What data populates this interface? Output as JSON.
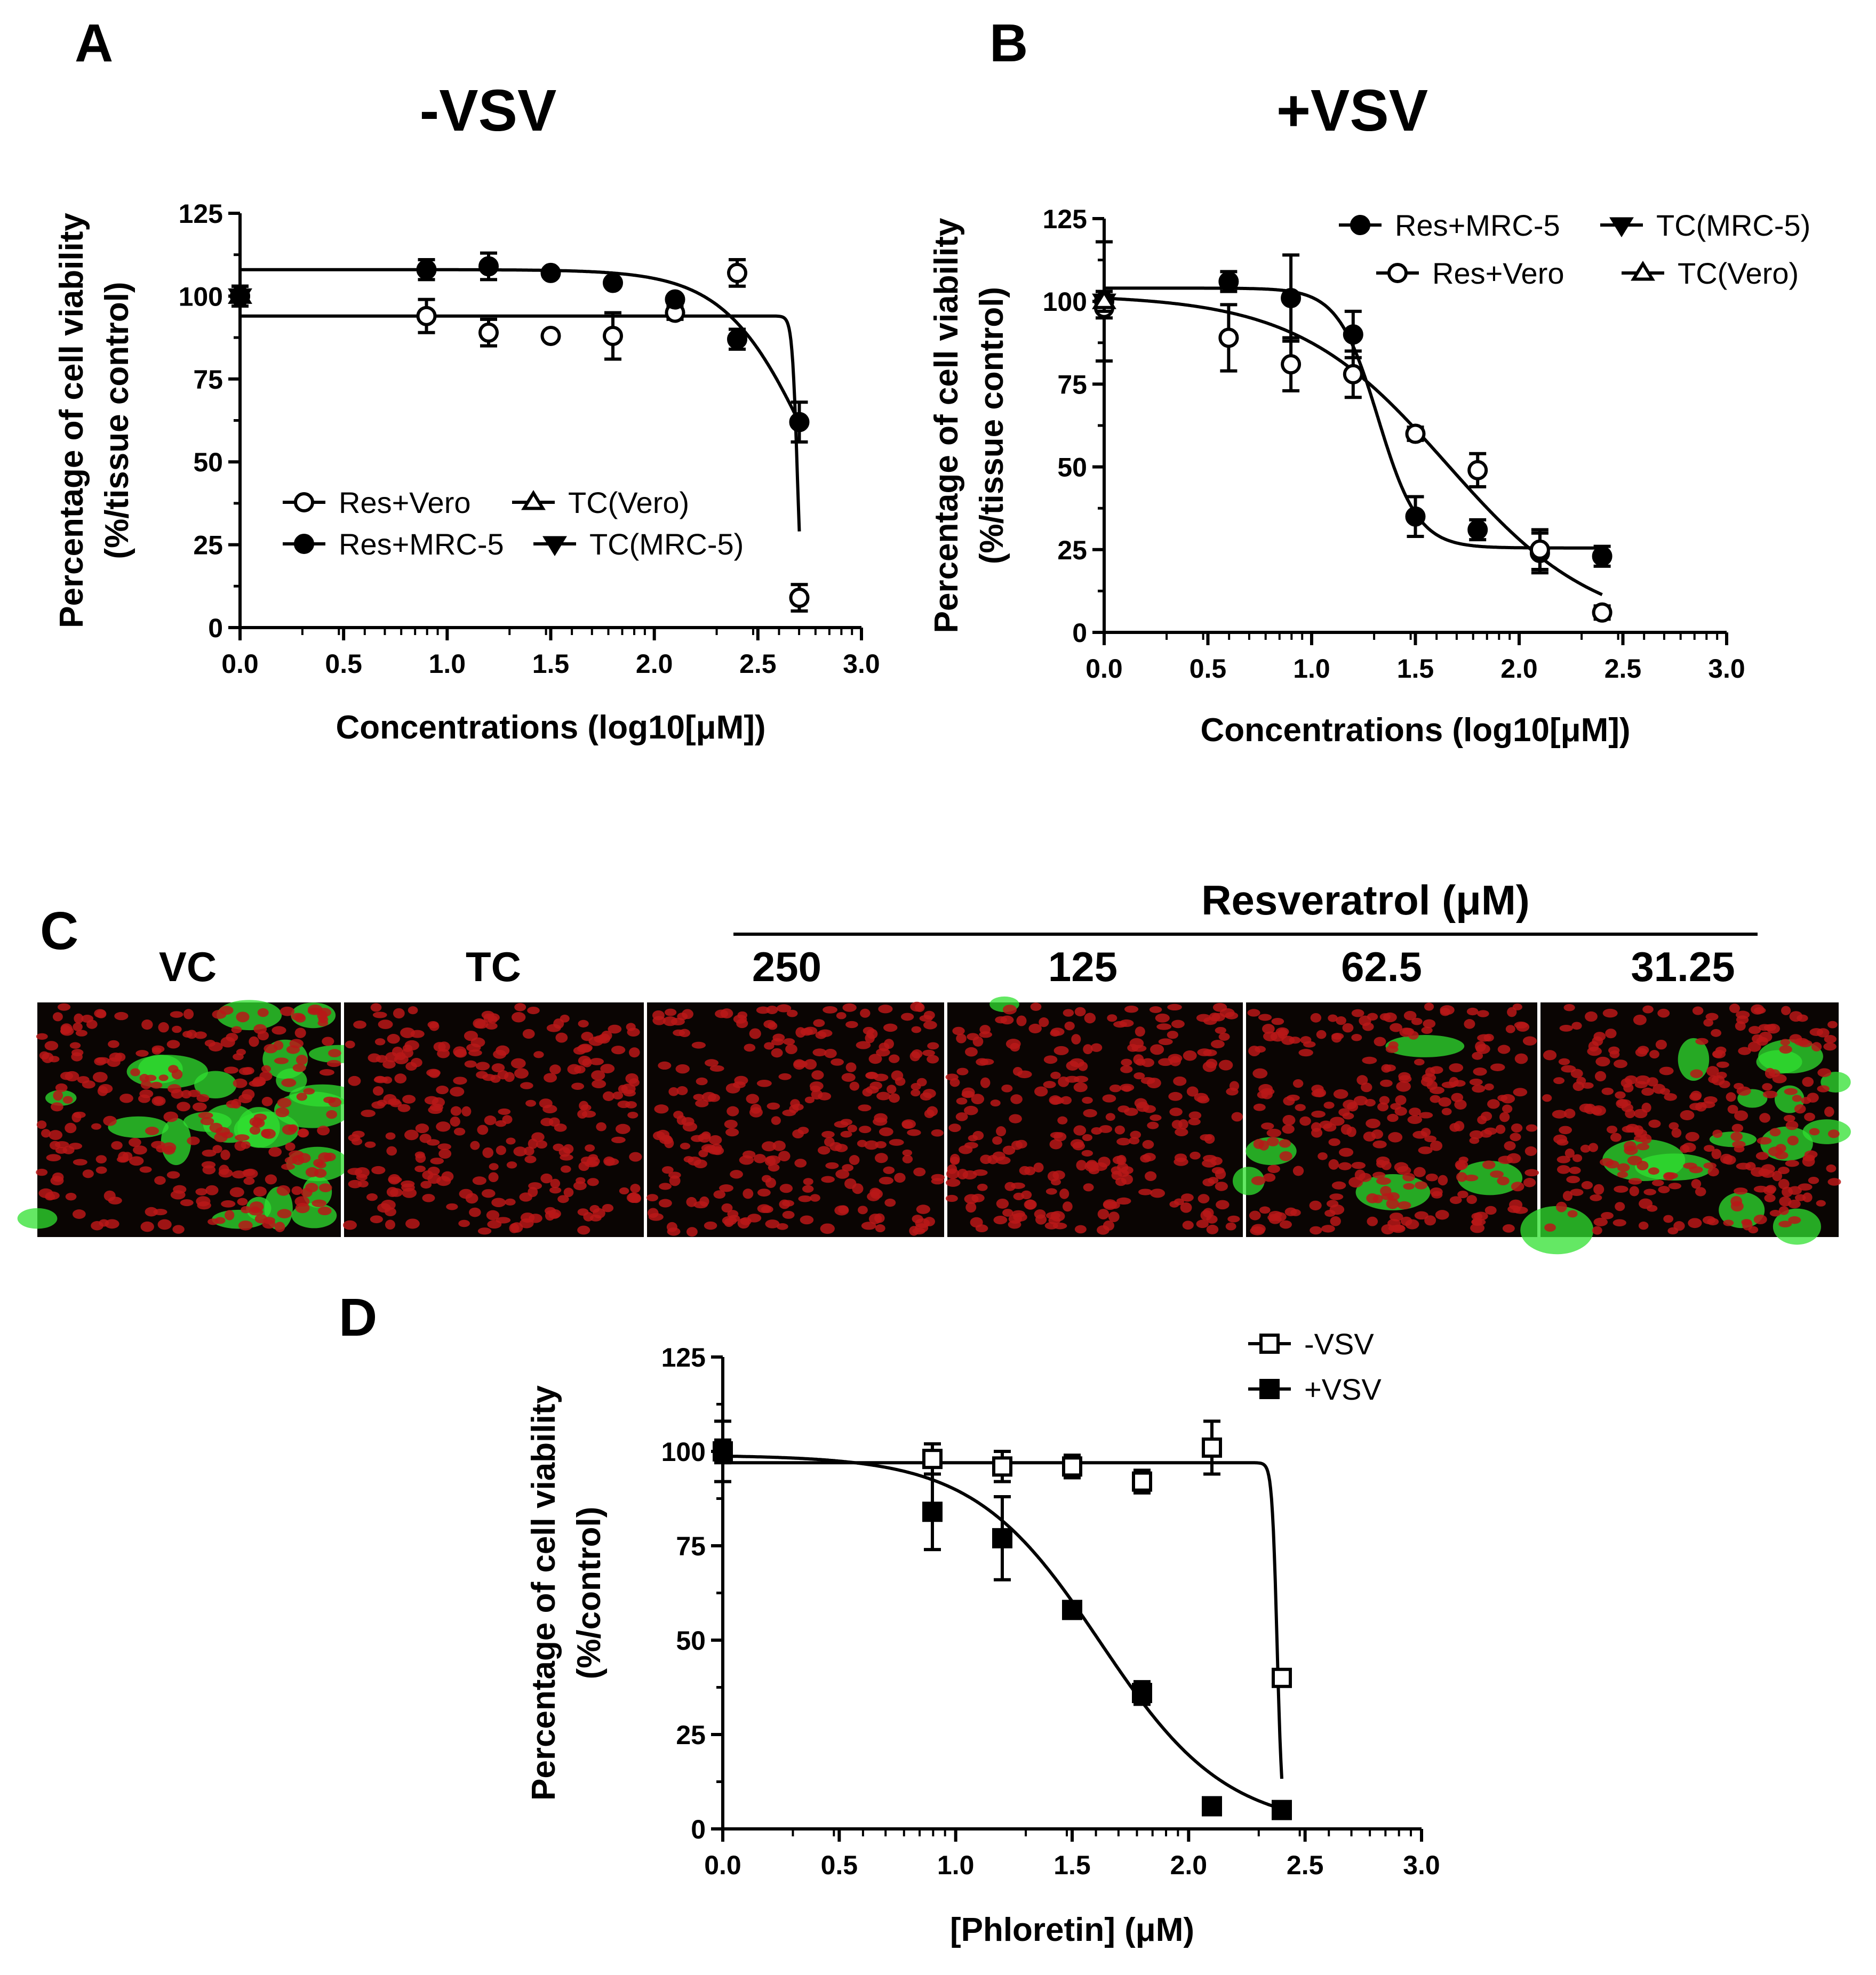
{
  "panels": {
    "A": {
      "letter": "A",
      "title": "-VSV"
    },
    "B": {
      "letter": "B",
      "title": "+VSV"
    },
    "C": {
      "letter": "C",
      "group_label": "Resveratrol (μM)",
      "columns": [
        "VC",
        "TC",
        "250",
        "125",
        "62.5",
        "31.25"
      ],
      "images": [
        {
          "name": "vc",
          "green": 0.6
        },
        {
          "name": "tc",
          "green": 0.0
        },
        {
          "name": "250",
          "green": 0.0
        },
        {
          "name": "125",
          "green": 0.02
        },
        {
          "name": "62-5",
          "green": 0.12
        },
        {
          "name": "31-25",
          "green": 0.35
        }
      ]
    },
    "D": {
      "letter": "D"
    }
  },
  "colors": {
    "axis": "#000000",
    "red": "#c01010",
    "green": "#20e020",
    "bg": "#000000"
  },
  "chart_data": [
    {
      "panel": "A",
      "type": "scatter",
      "title": "-VSV",
      "xlabel": "Concentrations (log10[μM])",
      "ylabel": "Percentage of cell viability",
      "ylabel2": "(%/tissue control)",
      "xlim": [
        0,
        3.0
      ],
      "ylim": [
        0,
        125
      ],
      "xticks": [
        "0.0",
        "0.5",
        "1.0",
        "1.5",
        "2.0",
        "2.5",
        "3.0"
      ],
      "yticks": [
        "0",
        "25",
        "50",
        "75",
        "100",
        "125"
      ],
      "legend_position": "lower-left",
      "series": [
        {
          "name": "Res+Vero",
          "marker": "circle-open",
          "x": [
            0,
            0.9,
            1.2,
            1.5,
            1.8,
            2.1,
            2.4,
            2.7
          ],
          "y": [
            100,
            94,
            89,
            88,
            88,
            95,
            107,
            9
          ],
          "err": [
            3,
            5,
            4,
            0,
            7,
            2,
            4,
            4
          ],
          "fit": {
            "type": "hill",
            "top": 94,
            "bottom": 0,
            "ec50log": 2.69,
            "slope": -35
          }
        },
        {
          "name": "TC(Vero)",
          "marker": "triangle-open",
          "x": [
            0
          ],
          "y": [
            100
          ],
          "err": [
            3
          ]
        },
        {
          "name": "Res+MRC-5",
          "marker": "circle-filled",
          "x": [
            0,
            0.9,
            1.2,
            1.5,
            1.8,
            2.1,
            2.4,
            2.7
          ],
          "y": [
            100,
            108,
            109,
            107,
            104,
            99,
            87,
            62
          ],
          "err": [
            3,
            3,
            4,
            1,
            1,
            1,
            3,
            6
          ],
          "fit": {
            "type": "hill",
            "top": 108,
            "bottom": 0,
            "ec50log": 2.76,
            "slope": -2.1
          }
        },
        {
          "name": "TC(MRC-5)",
          "marker": "triangle-filled",
          "x": [
            0
          ],
          "y": [
            100
          ],
          "err": [
            3
          ]
        }
      ]
    },
    {
      "panel": "B",
      "type": "scatter",
      "title": "+VSV",
      "xlabel": "Concentrations (log10[μM])",
      "ylabel": "Percentage of cell viability",
      "ylabel2": "(%/tissue control)",
      "xlim": [
        0,
        3.0
      ],
      "ylim": [
        0,
        125
      ],
      "xticks": [
        "0.0",
        "0.5",
        "1.0",
        "1.5",
        "2.0",
        "2.5",
        "3.0"
      ],
      "yticks": [
        "0",
        "25",
        "50",
        "75",
        "100",
        "125"
      ],
      "legend_position": "top-right",
      "series": [
        {
          "name": "Res+MRC-5",
          "marker": "circle-filled",
          "x": [
            0,
            0.6,
            0.9,
            1.2,
            1.5,
            1.8,
            2.1,
            2.4
          ],
          "y": [
            100,
            106,
            101,
            90,
            35,
            31,
            24,
            23
          ],
          "err": [
            18,
            3,
            13,
            7,
            6,
            3,
            6,
            3
          ],
          "fit": {
            "type": "hill",
            "top": 104,
            "bottom": 25.5,
            "ec50log": 1.32,
            "slope": -4.5
          }
        },
        {
          "name": "TC(MRC-5)",
          "marker": "triangle-filled",
          "x": [
            0
          ],
          "y": [
            100
          ],
          "err": [
            3
          ]
        },
        {
          "name": "Res+Vero",
          "marker": "circle-open",
          "x": [
            0,
            0.6,
            0.9,
            1.2,
            1.5,
            1.8,
            2.1,
            2.4
          ],
          "y": [
            98,
            89,
            81,
            78,
            60,
            49,
            25,
            6
          ],
          "err": [
            3,
            10,
            8,
            7,
            2,
            5,
            6,
            2
          ],
          "fit": {
            "type": "hill",
            "top": 102,
            "bottom": 0,
            "ec50log": 1.65,
            "slope": -1.2
          }
        },
        {
          "name": "TC(Vero)",
          "marker": "triangle-open",
          "x": [
            0
          ],
          "y": [
            100
          ],
          "err": [
            3
          ]
        }
      ]
    },
    {
      "panel": "D",
      "type": "scatter",
      "title": "",
      "xlabel": "[Phloretin] (μM)",
      "ylabel": "Percentage of cell viability",
      "ylabel2": "(%/control)",
      "xlim": [
        0,
        3.0
      ],
      "ylim": [
        0,
        125
      ],
      "xticks": [
        "0.0",
        "0.5",
        "1.0",
        "1.5",
        "2.0",
        "2.5",
        "3.0"
      ],
      "yticks": [
        "0",
        "25",
        "50",
        "75",
        "100",
        "125"
      ],
      "legend_position": "top-right",
      "series": [
        {
          "name": "-VSV",
          "marker": "square-open",
          "x": [
            0,
            0.9,
            1.2,
            1.5,
            1.8,
            2.1,
            2.4
          ],
          "y": [
            100,
            98,
            96,
            96,
            92,
            101,
            40
          ],
          "err": [
            8,
            4,
            4,
            3,
            3,
            7,
            2
          ],
          "fit": {
            "type": "hill",
            "top": 97,
            "bottom": 0,
            "ec50log": 2.38,
            "slope": -40
          }
        },
        {
          "name": "+VSV",
          "marker": "square-filled",
          "x": [
            0,
            0.9,
            1.2,
            1.5,
            1.8,
            2.1,
            2.4
          ],
          "y": [
            100,
            84,
            77,
            58,
            36,
            6,
            5
          ],
          "err": [
            3,
            10,
            11,
            2,
            3,
            1,
            1
          ],
          "fit": {
            "type": "hill",
            "top": 99,
            "bottom": 0,
            "ec50log": 1.62,
            "slope": -1.6
          }
        }
      ]
    }
  ]
}
